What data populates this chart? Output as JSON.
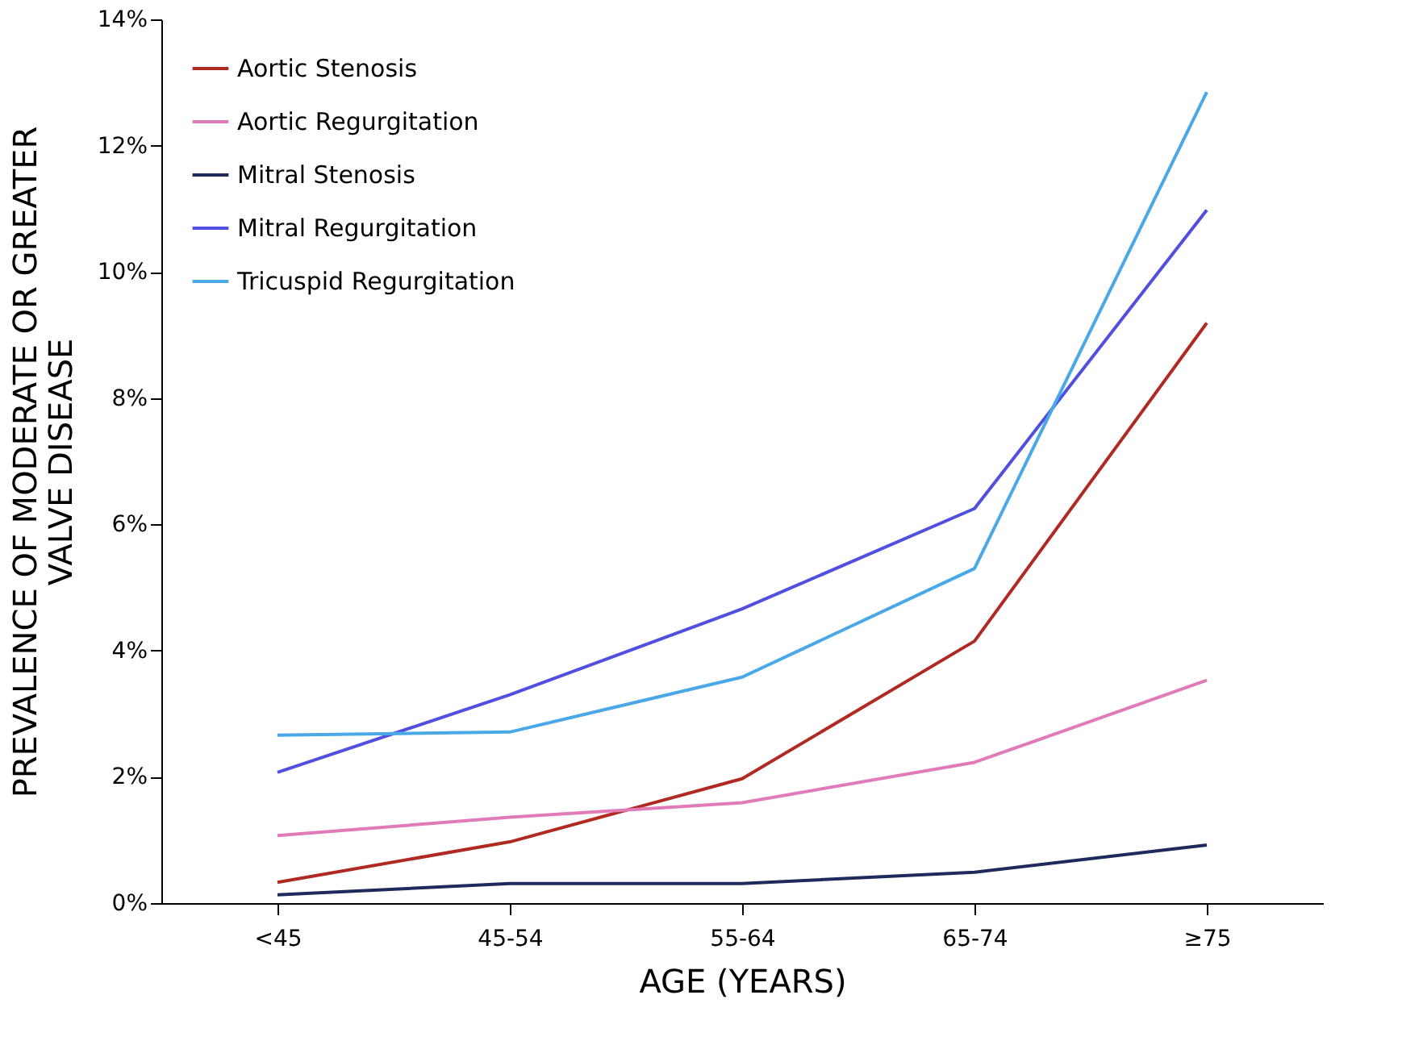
{
  "chart_data": {
    "type": "line",
    "xlabel": "AGE (YEARS)",
    "ylabel": "PREVALENCE OF MODERATE OR GREATER\nVALVE DISEASE",
    "categories": [
      "<45",
      "45-54",
      "55-64",
      "65-74",
      "≥75"
    ],
    "ylim": [
      0,
      14
    ],
    "yticks": [
      {
        "value": 0,
        "label": "0%"
      },
      {
        "value": 2,
        "label": "2%"
      },
      {
        "value": 4,
        "label": "4%"
      },
      {
        "value": 6,
        "label": "6%"
      },
      {
        "value": 8,
        "label": "8%"
      },
      {
        "value": 10,
        "label": "10%"
      },
      {
        "value": 12,
        "label": "12%"
      },
      {
        "value": 14,
        "label": "14%"
      }
    ],
    "grid": false,
    "legend": "top left",
    "marker": "none",
    "line_style": "solid",
    "series": [
      {
        "name": "Aortic Stenosis",
        "color": "#b02a22",
        "values": [
          0.33,
          0.97,
          1.97,
          4.15,
          9.19
        ]
      },
      {
        "name": "Aortic Regurgitation",
        "color": "#e07ab8",
        "values": [
          1.07,
          1.36,
          1.59,
          2.23,
          3.53
        ]
      },
      {
        "name": "Mitral Stenosis",
        "color": "#1f2a5c",
        "values": [
          0.13,
          0.31,
          0.31,
          0.49,
          0.92
        ]
      },
      {
        "name": "Mitral Regurgitation",
        "color": "#5050e0",
        "values": [
          2.07,
          3.3,
          4.66,
          6.25,
          10.98
        ]
      },
      {
        "name": "Tricuspid Regurgitation",
        "color": "#4aa8e8",
        "values": [
          2.66,
          2.71,
          3.58,
          5.3,
          12.85
        ]
      }
    ]
  }
}
